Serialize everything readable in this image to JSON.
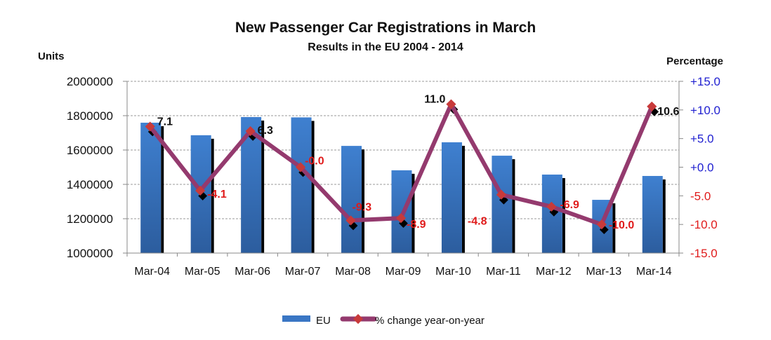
{
  "chart_data": {
    "type": "bar",
    "title": "New Passenger Car Registrations in March",
    "subtitle": "Results in the EU 2004 - 2014",
    "ylabel": "Units",
    "y2label": "Percentage",
    "xlabel": "",
    "categories": [
      "Mar-04",
      "Mar-05",
      "Mar-06",
      "Mar-07",
      "Mar-08",
      "Mar-09",
      "Mar-10",
      "Mar-11",
      "Mar-12",
      "Mar-13",
      "Mar-14"
    ],
    "ylim": [
      1000000,
      2000000
    ],
    "yticks": [
      1000000,
      1200000,
      1400000,
      1600000,
      1800000,
      2000000
    ],
    "ytick_labels": [
      "1000000",
      "1200000",
      "1400000",
      "1600000",
      "1800000",
      "2000000"
    ],
    "y2lim": [
      -15,
      15
    ],
    "y2ticks": [
      -15,
      -10,
      -5,
      0,
      5,
      10,
      15
    ],
    "y2tick_labels": [
      "-15.0",
      "-10.0",
      "-5.0",
      "+0.0",
      "+5.0",
      "+10.0",
      "+15.0"
    ],
    "grid": true,
    "legend_position": "bottom-center",
    "series": [
      {
        "name": "EU",
        "type": "bar",
        "axis": "left",
        "color": "#3a76c4",
        "values": [
          1759000,
          1686000,
          1792000,
          1790000,
          1624000,
          1482000,
          1645000,
          1567000,
          1457000,
          1310000,
          1449000
        ]
      },
      {
        "name": "% change year-on-year",
        "type": "line",
        "axis": "right",
        "color": "#943a6e",
        "marker_color": "#c83a3a",
        "values": [
          7.1,
          -4.1,
          6.3,
          -0.0,
          -9.3,
          -8.9,
          11.0,
          -4.8,
          -6.9,
          -10.0,
          10.6
        ],
        "labels": [
          "7.1",
          "-4.1",
          "6.3",
          "-0.0",
          "-9.3",
          "-8.9",
          "11.0",
          "-4.8",
          "-6.9",
          "-10.0",
          "10.6"
        ]
      }
    ],
    "colors": {
      "positive_label": "#111111",
      "negative_label": "#e01b1b",
      "positive_axis": "#1f1fd0",
      "negative_axis": "#e01b1b"
    }
  }
}
